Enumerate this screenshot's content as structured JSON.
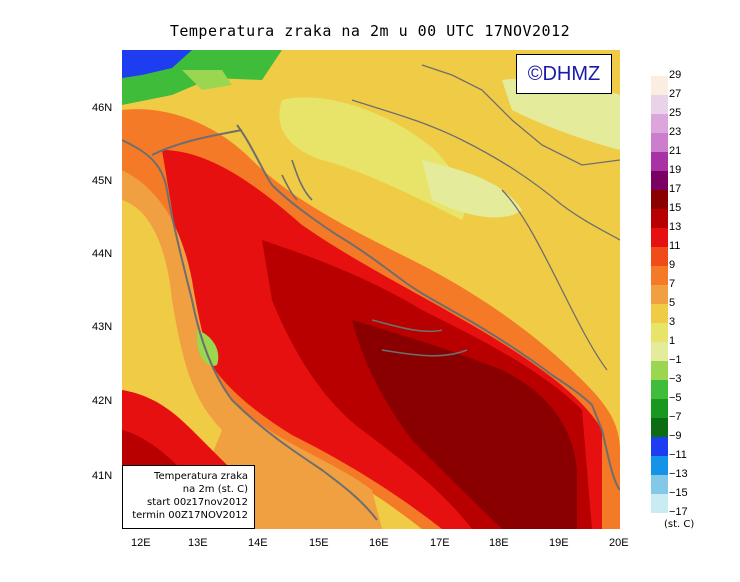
{
  "title": "Temperatura zraka na 2m u 00 UTC 17NOV2012",
  "logo": "©DHMZ",
  "info": {
    "line1": "Temperatura zraka",
    "line2": "na 2m (st. C)",
    "line3": "start 00z17nov2012",
    "line4": "termin 00Z17NOV2012"
  },
  "latitudes": [
    "46N",
    "45N",
    "44N",
    "43N",
    "42N",
    "41N"
  ],
  "longitudes": [
    "12E",
    "13E",
    "14E",
    "15E",
    "16E",
    "17E",
    "18E",
    "19E",
    "20E"
  ],
  "legend": {
    "labels": [
      "29",
      "27",
      "25",
      "23",
      "21",
      "19",
      "17",
      "15",
      "13",
      "11",
      "9",
      "7",
      "5",
      "3",
      "1",
      "−1",
      "−3",
      "−5",
      "−7",
      "−9",
      "−11",
      "−13",
      "−15",
      "−17"
    ],
    "colors": [
      "#fbeee0",
      "#e8d3e8",
      "#dba6db",
      "#cc7dcc",
      "#a632a6",
      "#7a0064",
      "#8a0000",
      "#b80000",
      "#e61010",
      "#f04c1a",
      "#f57a28",
      "#f0a040",
      "#f0cc46",
      "#e8e46a",
      "#e4ec9c",
      "#9ad650",
      "#3ebc3a",
      "#18981e",
      "#0c6c14",
      "#1e3cf0",
      "#1494e6",
      "#84c8e8",
      "#c8ecf2",
      "#ffffff"
    ],
    "unit": "(st. C)"
  }
}
